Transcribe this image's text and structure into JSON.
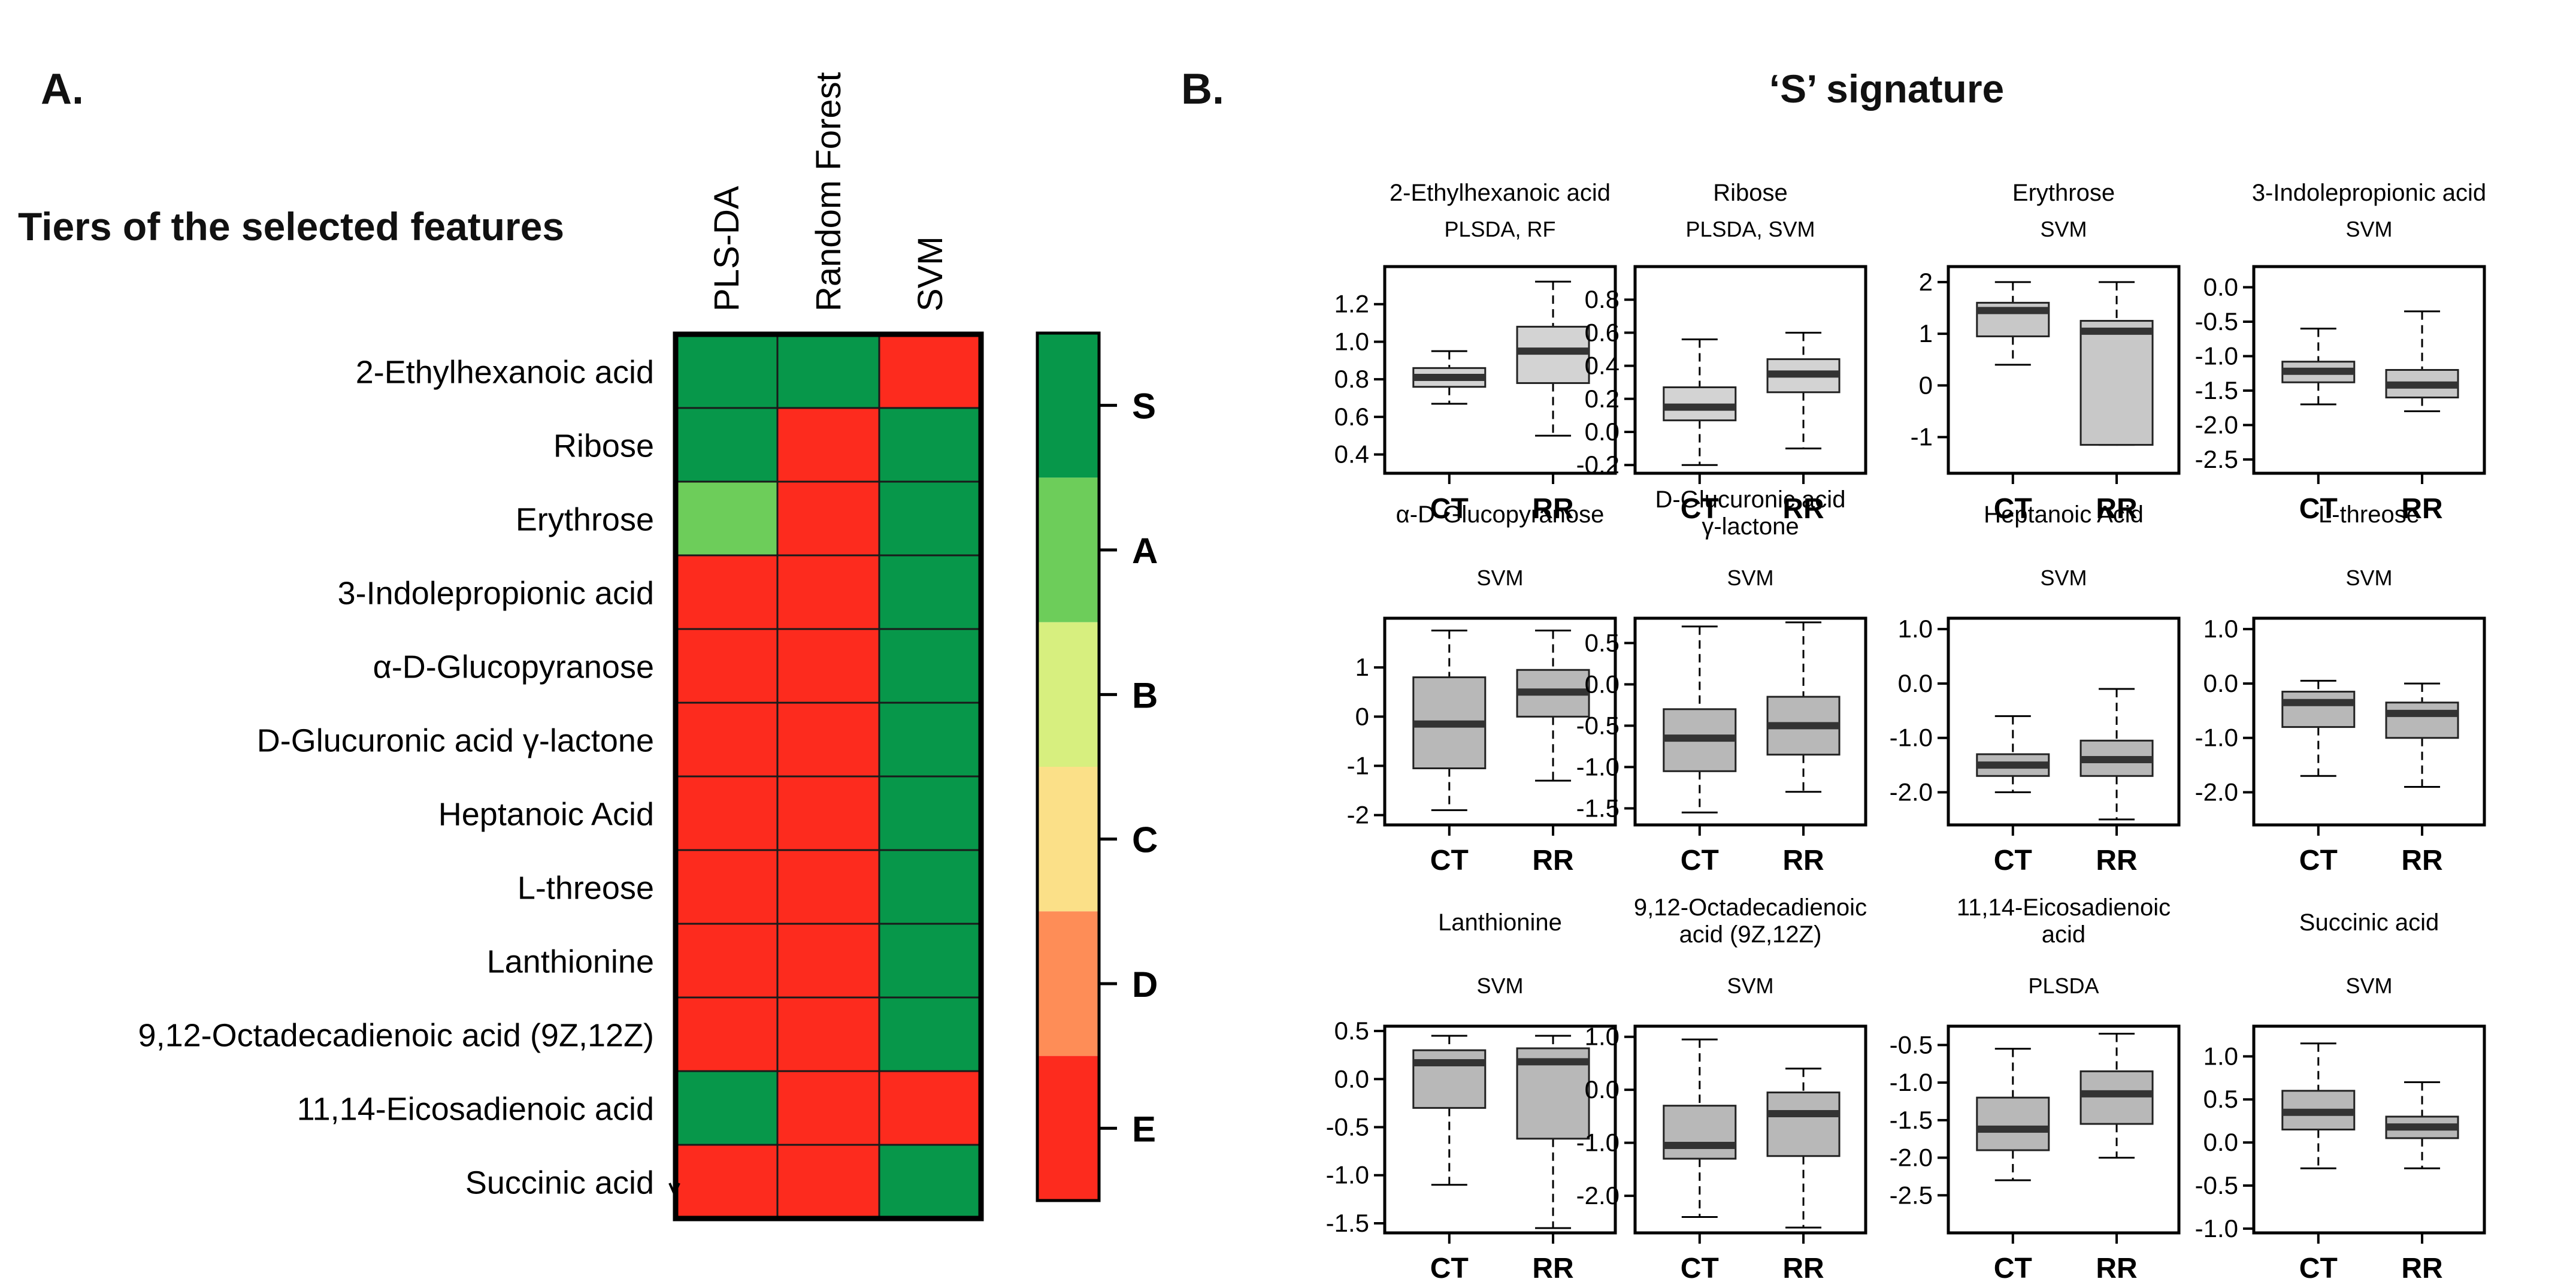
{
  "panel_a": {
    "label": "A.",
    "title": "Tiers of the selected features",
    "methods": [
      "PLS-DA",
      "Random Forest",
      "SVM"
    ],
    "tiers": [
      "S",
      "A",
      "B",
      "C",
      "D",
      "E"
    ],
    "tier_colors": [
      "#07974a",
      "#6dcd5a",
      "#d7ef7f",
      "#fbe088",
      "#fe8d57",
      "#fd2b1e"
    ],
    "features": [
      {
        "name": "2-Ethylhexanoic acid",
        "tiers": [
          "S",
          "S",
          "E"
        ]
      },
      {
        "name": "Ribose",
        "tiers": [
          "S",
          "E",
          "S"
        ]
      },
      {
        "name": "Erythrose",
        "tiers": [
          "A",
          "E",
          "S"
        ]
      },
      {
        "name": "3-Indolepropionic acid",
        "tiers": [
          "E",
          "E",
          "S"
        ]
      },
      {
        "name": "α-D-Glucopyranose",
        "tiers": [
          "E",
          "E",
          "S"
        ]
      },
      {
        "name": "D-Glucuronic acid γ-lactone",
        "tiers": [
          "E",
          "E",
          "S"
        ]
      },
      {
        "name": "Heptanoic Acid",
        "tiers": [
          "E",
          "E",
          "S"
        ]
      },
      {
        "name": "L-threose",
        "tiers": [
          "E",
          "E",
          "S"
        ]
      },
      {
        "name": "Lanthionine",
        "tiers": [
          "E",
          "E",
          "S"
        ]
      },
      {
        "name": "9,12-Octadecadienoic acid (9Z,12Z)",
        "tiers": [
          "E",
          "E",
          "S"
        ]
      },
      {
        "name": "11,14-Eicosadienoic acid",
        "tiers": [
          "S",
          "E",
          "E"
        ]
      },
      {
        "name": "Succinic acid",
        "tiers": [
          "E",
          "E",
          "S"
        ]
      }
    ]
  },
  "panel_b": {
    "label": "B.",
    "title": "‘S’ signature"
  },
  "chart_data": [
    {
      "type": "heatmap",
      "title": "Tiers of the selected features",
      "x_categories": [
        "PLS-DA",
        "Random Forest",
        "SVM"
      ],
      "y_categories": [
        "2-Ethylhexanoic acid",
        "Ribose",
        "Erythrose",
        "3-Indolepropionic acid",
        "α-D-Glucopyranose",
        "D-Glucuronic acid γ-lactone",
        "Heptanoic Acid",
        "L-threose",
        "Lanthionine",
        "9,12-Octadecadienoic acid (9Z,12Z)",
        "11,14-Eicosadienoic acid",
        "Succinic acid"
      ],
      "values": [
        [
          "S",
          "S",
          "E"
        ],
        [
          "S",
          "E",
          "S"
        ],
        [
          "A",
          "E",
          "S"
        ],
        [
          "E",
          "E",
          "S"
        ],
        [
          "E",
          "E",
          "S"
        ],
        [
          "E",
          "E",
          "S"
        ],
        [
          "E",
          "E",
          "S"
        ],
        [
          "E",
          "E",
          "S"
        ],
        [
          "E",
          "E",
          "S"
        ],
        [
          "E",
          "E",
          "S"
        ],
        [
          "S",
          "E",
          "E"
        ],
        [
          "E",
          "E",
          "S"
        ]
      ],
      "legend": [
        "S",
        "A",
        "B",
        "C",
        "D",
        "E"
      ]
    },
    {
      "type": "boxplot",
      "title": "‘S’ signature",
      "groups": [
        "CT",
        "RR"
      ],
      "plots": [
        {
          "title": "2-Ethylhexanoic acid",
          "subtitle": "PLSDA, RF",
          "ylim": [
            0.3,
            1.4
          ],
          "ticks": [
            "1.2",
            "1.0",
            "0.8",
            "0.6",
            "0.4"
          ],
          "tick_values": [
            1.2,
            1.0,
            0.8,
            0.6,
            0.4
          ],
          "boxes": [
            {
              "group": "CT",
              "min": 0.67,
              "q1": 0.76,
              "median": 0.81,
              "q3": 0.86,
              "max": 0.95,
              "fill": "#d3d3d3"
            },
            {
              "group": "RR",
              "min": 0.5,
              "q1": 0.78,
              "median": 0.95,
              "q3": 1.08,
              "max": 1.32,
              "fill": "#d3d3d3"
            }
          ]
        },
        {
          "title": "Ribose",
          "subtitle": "PLSDA, SVM",
          "ylim": [
            -0.25,
            1.0
          ],
          "ticks": [
            "0.8",
            "0.6",
            "0.4",
            "0.2",
            "0.0",
            "-0.2"
          ],
          "tick_values": [
            0.8,
            0.6,
            0.4,
            0.2,
            0.0,
            -0.2
          ],
          "boxes": [
            {
              "group": "CT",
              "min": -0.2,
              "q1": 0.07,
              "median": 0.15,
              "q3": 0.27,
              "max": 0.56,
              "fill": "#d3d3d3"
            },
            {
              "group": "RR",
              "min": -0.1,
              "q1": 0.24,
              "median": 0.35,
              "q3": 0.44,
              "max": 0.6,
              "fill": "#d3d3d3"
            }
          ]
        },
        {
          "title": "Erythrose",
          "subtitle": "SVM",
          "ylim": [
            -1.7,
            2.3
          ],
          "ticks": [
            "2",
            "1",
            "0",
            "-1"
          ],
          "tick_values": [
            2,
            1,
            0,
            -1
          ],
          "boxes": [
            {
              "group": "CT",
              "min": 0.4,
              "q1": 0.95,
              "median": 1.45,
              "q3": 1.6,
              "max": 2.0,
              "fill": "#c8c8c8"
            },
            {
              "group": "RR",
              "min": -1.15,
              "q1": -1.15,
              "median": 1.05,
              "q3": 1.25,
              "max": 2.0,
              "fill": "#c8c8c8"
            }
          ]
        },
        {
          "title": "3-Indolepropionic acid",
          "subtitle": "SVM",
          "ylim": [
            -2.7,
            0.3
          ],
          "ticks": [
            "0.0",
            "-0.5",
            "-1.0",
            "-1.5",
            "-2.0",
            "-2.5"
          ],
          "tick_values": [
            0.0,
            -0.5,
            -1.0,
            -1.5,
            -2.0,
            -2.5
          ],
          "boxes": [
            {
              "group": "CT",
              "min": -1.7,
              "q1": -1.38,
              "median": -1.22,
              "q3": -1.08,
              "max": -0.6,
              "fill": "#c8c8c8"
            },
            {
              "group": "RR",
              "min": -1.8,
              "q1": -1.6,
              "median": -1.42,
              "q3": -1.2,
              "max": -0.35,
              "fill": "#c8c8c8"
            }
          ]
        },
        {
          "title": "α-D-Glucopyranose",
          "subtitle": "SVM",
          "ylim": [
            -2.2,
            2.0
          ],
          "ticks": [
            "1",
            "0",
            "-1",
            "-2"
          ],
          "tick_values": [
            1,
            0,
            -1,
            -2
          ],
          "boxes": [
            {
              "group": "CT",
              "min": -1.9,
              "q1": -1.05,
              "median": -0.15,
              "q3": 0.8,
              "max": 1.75,
              "fill": "#b8b8b8"
            },
            {
              "group": "RR",
              "min": -1.3,
              "q1": 0.0,
              "median": 0.5,
              "q3": 0.95,
              "max": 1.75,
              "fill": "#b8b8b8"
            }
          ]
        },
        {
          "title": "D-Glucuronic acid",
          "title2": "γ-lactone",
          "subtitle": "SVM",
          "ylim": [
            -1.7,
            0.8
          ],
          "ticks": [
            "0.5",
            "0.0",
            "-0.5",
            "-1.0",
            "-1.5"
          ],
          "tick_values": [
            0.5,
            0.0,
            -0.5,
            -1.0,
            -1.5
          ],
          "boxes": [
            {
              "group": "CT",
              "min": -1.55,
              "q1": -1.05,
              "median": -0.65,
              "q3": -0.3,
              "max": 0.7,
              "fill": "#b8b8b8"
            },
            {
              "group": "RR",
              "min": -1.3,
              "q1": -0.85,
              "median": -0.5,
              "q3": -0.15,
              "max": 0.75,
              "fill": "#b8b8b8"
            }
          ]
        },
        {
          "title": "Heptanoic Acid",
          "subtitle": "SVM",
          "ylim": [
            -2.6,
            1.2
          ],
          "ticks": [
            "1.0",
            "0.0",
            "-1.0",
            "-2.0"
          ],
          "tick_values": [
            1.0,
            0.0,
            -1.0,
            -2.0
          ],
          "boxes": [
            {
              "group": "CT",
              "min": -2.0,
              "q1": -1.7,
              "median": -1.5,
              "q3": -1.3,
              "max": -0.6,
              "fill": "#b8b8b8"
            },
            {
              "group": "RR",
              "min": -2.5,
              "q1": -1.7,
              "median": -1.4,
              "q3": -1.05,
              "max": -0.1,
              "fill": "#b8b8b8"
            }
          ]
        },
        {
          "title": "L-threose",
          "subtitle": "SVM",
          "ylim": [
            -2.6,
            1.2
          ],
          "ticks": [
            "1.0",
            "0.0",
            "-1.0",
            "-2.0"
          ],
          "tick_values": [
            1.0,
            0.0,
            -1.0,
            -2.0
          ],
          "boxes": [
            {
              "group": "CT",
              "min": -1.7,
              "q1": -0.8,
              "median": -0.35,
              "q3": -0.15,
              "max": 0.05,
              "fill": "#b8b8b8"
            },
            {
              "group": "RR",
              "min": -1.9,
              "q1": -1.0,
              "median": -0.55,
              "q3": -0.35,
              "max": 0.0,
              "fill": "#b8b8b8"
            }
          ]
        },
        {
          "title": "Lanthionine",
          "subtitle": "SVM",
          "ylim": [
            -1.6,
            0.55
          ],
          "ticks": [
            "0.5",
            "0.0",
            "-0.5",
            "-1.0",
            "-1.5"
          ],
          "tick_values": [
            0.5,
            0.0,
            -0.5,
            -1.0,
            -1.5
          ],
          "boxes": [
            {
              "group": "CT",
              "min": -1.1,
              "q1": -0.3,
              "median": 0.17,
              "q3": 0.3,
              "max": 0.45,
              "fill": "#b8b8b8"
            },
            {
              "group": "RR",
              "min": -1.55,
              "q1": -0.62,
              "median": 0.18,
              "q3": 0.32,
              "max": 0.45,
              "fill": "#b8b8b8"
            }
          ]
        },
        {
          "title": "9,12-Octadecadienoic",
          "title2": "acid (9Z,12Z)",
          "subtitle": "SVM",
          "ylim": [
            -2.7,
            1.2
          ],
          "ticks": [
            "1.0",
            "0.0",
            "-1.0",
            "-2.0"
          ],
          "tick_values": [
            1.0,
            0.0,
            -1.0,
            -2.0
          ],
          "boxes": [
            {
              "group": "CT",
              "min": -2.4,
              "q1": -1.3,
              "median": -1.05,
              "q3": -0.3,
              "max": 0.95,
              "fill": "#b8b8b8"
            },
            {
              "group": "RR",
              "min": -2.6,
              "q1": -1.25,
              "median": -0.45,
              "q3": -0.05,
              "max": 0.4,
              "fill": "#b8b8b8"
            }
          ]
        },
        {
          "title": "11,14-Eicosadienoic",
          "title2": "acid",
          "subtitle": "PLSDA",
          "ylim": [
            -3.0,
            -0.25
          ],
          "ticks": [
            "-0.5",
            "-1.0",
            "-1.5",
            "-2.0",
            "-2.5"
          ],
          "tick_values": [
            -0.5,
            -1.0,
            -1.5,
            -2.0,
            -2.5
          ],
          "boxes": [
            {
              "group": "CT",
              "min": -2.3,
              "q1": -1.9,
              "median": -1.62,
              "q3": -1.2,
              "max": -0.55,
              "fill": "#b8b8b8"
            },
            {
              "group": "RR",
              "min": -2.0,
              "q1": -1.55,
              "median": -1.15,
              "q3": -0.85,
              "max": -0.35,
              "fill": "#b8b8b8"
            }
          ]
        },
        {
          "title": "Succinic acid",
          "subtitle": "SVM",
          "ylim": [
            -1.05,
            1.35
          ],
          "ticks": [
            "1.0",
            "0.5",
            "0.0",
            "-0.5",
            "-1.0"
          ],
          "tick_values": [
            1.0,
            0.5,
            0.0,
            -0.5,
            -1.0
          ],
          "boxes": [
            {
              "group": "CT",
              "min": -0.3,
              "q1": 0.15,
              "median": 0.35,
              "q3": 0.6,
              "max": 1.15,
              "fill": "#b8b8b8"
            },
            {
              "group": "RR",
              "min": -0.3,
              "q1": 0.05,
              "median": 0.18,
              "q3": 0.3,
              "max": 0.7,
              "fill": "#b8b8b8"
            }
          ]
        }
      ]
    }
  ]
}
